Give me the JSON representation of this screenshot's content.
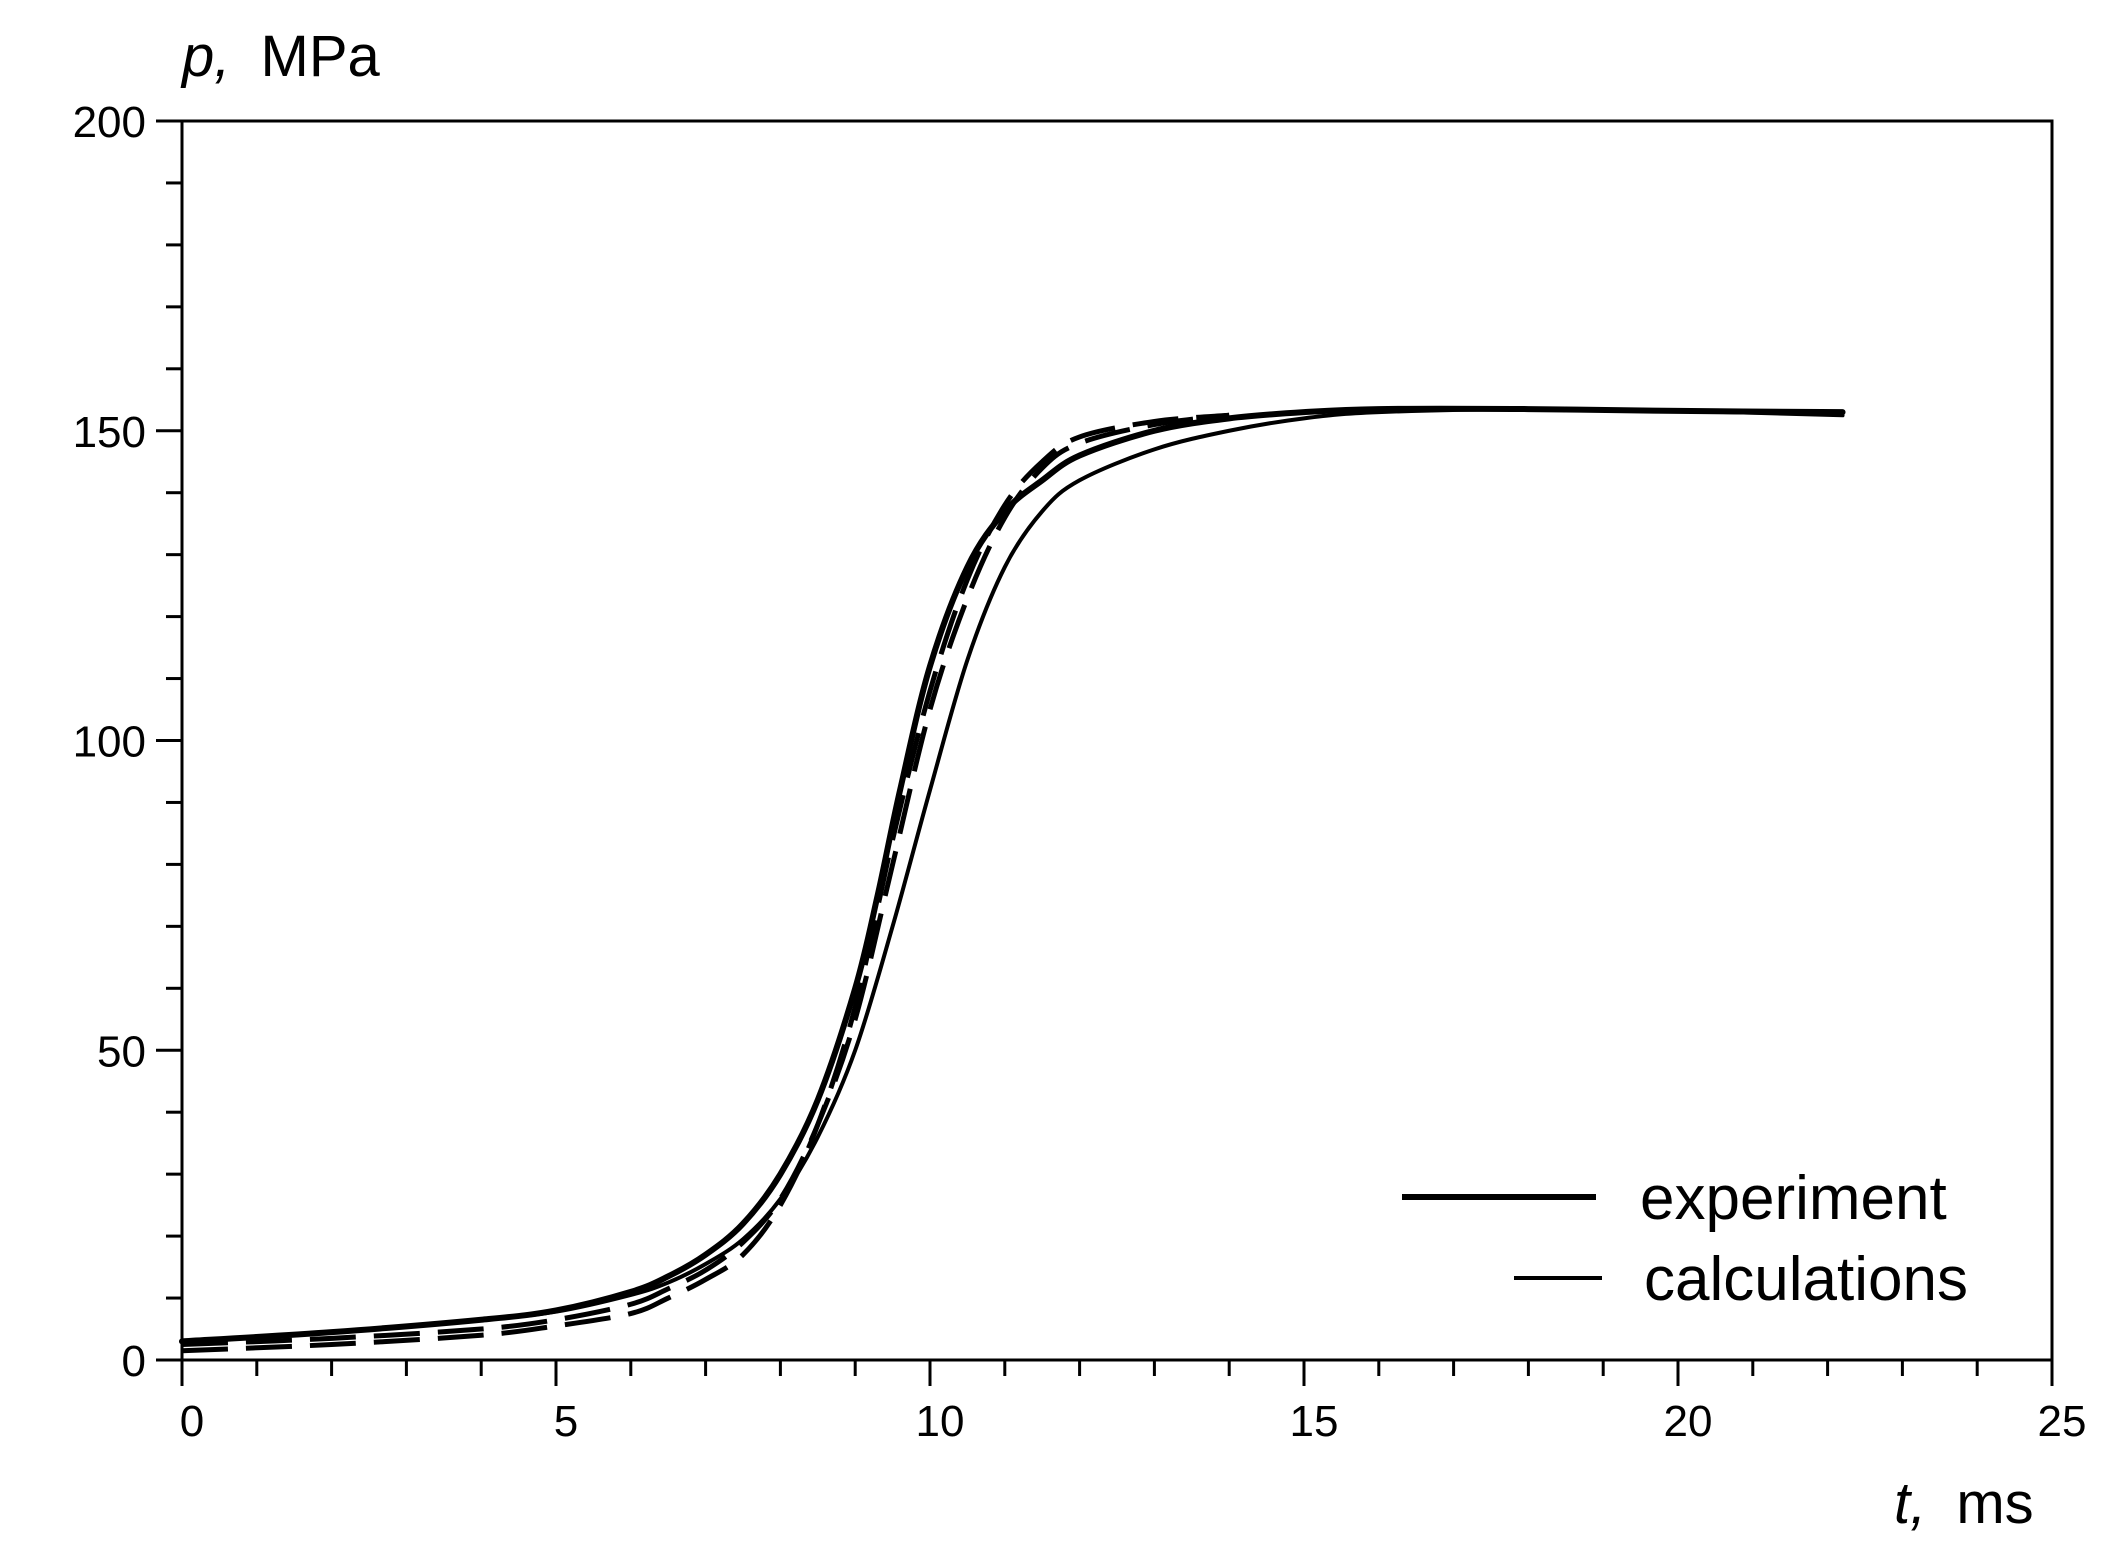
{
  "chart_data": {
    "type": "line",
    "xlabel": {
      "var": "t,",
      "unit": "ms"
    },
    "ylabel": {
      "var": "p,",
      "unit": "MPa"
    },
    "xlim": [
      0,
      25
    ],
    "ylim": [
      0,
      200
    ],
    "x_ticks": [
      0,
      5,
      10,
      15,
      20,
      25
    ],
    "y_ticks": [
      0,
      50,
      100,
      150,
      200
    ],
    "x_minor_step": 1,
    "y_minor_step": 10,
    "grid": false,
    "legend_position": "bottom-right",
    "legend": [
      {
        "label": "experiment",
        "style": "solid-thick"
      },
      {
        "label": "calculations",
        "style": "solid-thin"
      }
    ],
    "series": [
      {
        "style": "solid-thick",
        "x": [
          0,
          2,
          4,
          5,
          6,
          6.5,
          7,
          7.5,
          8,
          8.5,
          9,
          9.3,
          9.6,
          10,
          10.5,
          11,
          11.5,
          12,
          13,
          14,
          15,
          16,
          18,
          20,
          22.2
        ],
        "y": [
          3,
          4.5,
          6.5,
          8,
          11,
          13.5,
          17,
          22,
          30,
          42,
          60,
          75,
          92,
          112,
          128,
          137,
          142,
          146,
          150,
          152,
          153,
          153.5,
          153.5,
          153.2,
          153
        ]
      },
      {
        "style": "solid-thin",
        "x": [
          0,
          2,
          4,
          5,
          6,
          6.5,
          7,
          7.5,
          8,
          8.5,
          9,
          9.5,
          10,
          10.5,
          11,
          11.5,
          12,
          13,
          14,
          15,
          16,
          18,
          20,
          22.2
        ],
        "y": [
          3,
          4.5,
          6.5,
          7.8,
          10.5,
          12.5,
          15.5,
          19.5,
          26,
          36,
          50,
          70,
          92,
          113,
          128,
          137,
          142,
          147,
          150,
          152,
          153,
          153.5,
          153.2,
          152.5
        ]
      },
      {
        "style": "dashed",
        "x": [
          0,
          2,
          4,
          5,
          6,
          6.5,
          7,
          7.5,
          8,
          8.5,
          9,
          9.5,
          10,
          10.5,
          11,
          11.5,
          12,
          13,
          14
        ],
        "y": [
          1.5,
          2.5,
          4,
          5.5,
          7.5,
          10,
          13,
          17,
          25,
          38,
          57,
          84,
          108,
          126,
          138,
          145,
          149,
          151.5,
          152.5
        ]
      },
      {
        "style": "dashed",
        "x": [
          0,
          2,
          4,
          5,
          6,
          6.5,
          7,
          7.5,
          8,
          8.5,
          9,
          9.5,
          10,
          10.5,
          11,
          11.5,
          12,
          13,
          14
        ],
        "y": [
          2.5,
          3.5,
          5,
          6.5,
          9,
          11.5,
          14.5,
          19,
          26,
          38,
          55,
          80,
          105,
          123,
          136,
          144,
          148,
          151,
          152.5
        ]
      }
    ]
  }
}
